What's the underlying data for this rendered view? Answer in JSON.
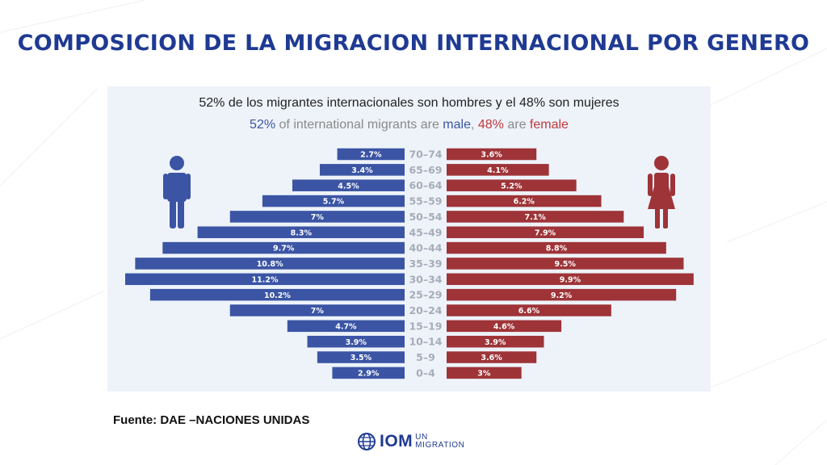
{
  "title": "COMPOSICION DE LA MIGRACION INTERNACIONAL POR GENERO",
  "subtitle_es": "52% de los migrantes internacionales son hombres y el  48% son mujeres",
  "subtitle_en": {
    "male_pct": "52%",
    "part1": " of international migrants are ",
    "male_word": "male",
    "comma": ", ",
    "female_pct": "48%",
    "part2": " are ",
    "female_word": "female"
  },
  "source": "Fuente: DAE –NACIONES UNIDAS",
  "logo": {
    "main": "IOM",
    "sub_top": "UN",
    "sub_bottom": "MIGRATION",
    "icon": "globe-icon"
  },
  "colors": {
    "male": "#3b55a4",
    "female": "#9e3438",
    "title": "#1f3a93",
    "age_label": "#a6adb8"
  },
  "icons": {
    "male": "male-figure-icon",
    "female": "female-figure-icon"
  },
  "chart_data": {
    "type": "bar",
    "orientation": "horizontal-pyramid",
    "categories": [
      "70–74",
      "65–69",
      "60–64",
      "55–59",
      "50–54",
      "45–49",
      "40–44",
      "35–39",
      "30–34",
      "25–29",
      "20–24",
      "15–19",
      "10–14",
      "5–9",
      "0–4"
    ],
    "series": [
      {
        "name": "male",
        "values": [
          2.7,
          3.4,
          4.5,
          5.7,
          7,
          8.3,
          9.7,
          10.8,
          11.2,
          10.2,
          7,
          4.7,
          3.9,
          3.5,
          2.9
        ],
        "labels": [
          "2.7%",
          "3.4%",
          "4.5%",
          "5.7%",
          "7%",
          "8.3%",
          "9.7%",
          "10.8%",
          "11.2%",
          "10.2%",
          "7%",
          "4.7%",
          "3.9%",
          "3.5%",
          "2.9%"
        ]
      },
      {
        "name": "female",
        "values": [
          3.6,
          4.1,
          5.2,
          6.2,
          7.1,
          7.9,
          8.8,
          9.5,
          9.9,
          9.2,
          6.6,
          4.6,
          3.9,
          3.6,
          3
        ],
        "labels": [
          "3.6%",
          "4.1%",
          "5.2%",
          "6.2%",
          "7.1%",
          "7.9%",
          "8.8%",
          "9.5%",
          "9.9%",
          "9.2%",
          "6.6%",
          "4.6%",
          "3.9%",
          "3.6%",
          "3%"
        ]
      }
    ],
    "title": "52% of international migrants are male, 48% are female",
    "xlabel": "",
    "ylabel": "",
    "xlim": [
      0,
      11.2
    ],
    "grid": false,
    "legend": "none"
  }
}
